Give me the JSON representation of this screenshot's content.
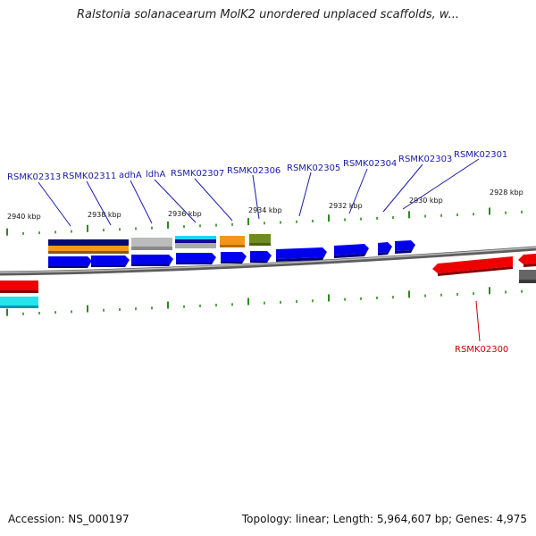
{
  "title": "Ralstonia solanacearum MolK2 unordered unplaced scaffolds, w...",
  "footer": {
    "accession": "Accession: NS_000197",
    "summary": "Topology: linear; Length: 5,964,607 bp; Genes: 4,975"
  },
  "colors": {
    "backbone": "#8a8a8a",
    "tick": "#2a8a1a",
    "forward_gene": "#0000ee",
    "reverse_gene": "#ee0000",
    "label_forward": "#1a1aaa",
    "label_reverse": "#cc0000"
  },
  "scale_labels": [
    "2940 kbp",
    "2938 kbp",
    "2936 kbp",
    "2934 kbp",
    "2932 kbp",
    "2930 kbp",
    "2928 kbp"
  ],
  "gene_labels": [
    {
      "name": "RSMK02313",
      "strand": "forward"
    },
    {
      "name": "RSMK02311",
      "strand": "forward"
    },
    {
      "name": "adhA",
      "strand": "forward"
    },
    {
      "name": "ldhA",
      "strand": "forward"
    },
    {
      "name": "RSMK02307",
      "strand": "forward"
    },
    {
      "name": "RSMK02306",
      "strand": "forward"
    },
    {
      "name": "RSMK02305",
      "strand": "forward"
    },
    {
      "name": "RSMK02304",
      "strand": "forward"
    },
    {
      "name": "RSMK02303",
      "strand": "forward"
    },
    {
      "name": "RSMK02301",
      "strand": "forward"
    },
    {
      "name": "RSMK02300",
      "strand": "reverse"
    }
  ]
}
